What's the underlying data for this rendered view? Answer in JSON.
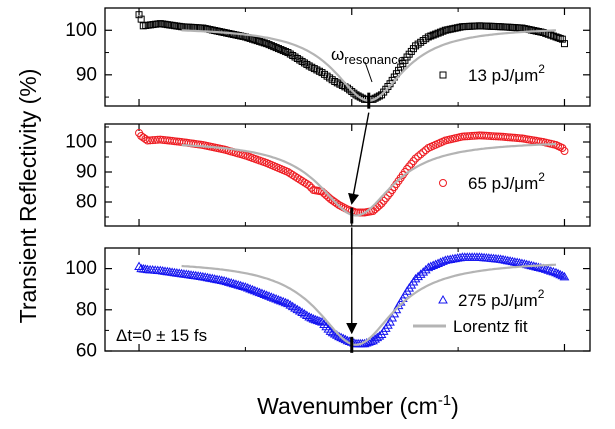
{
  "chart_data": {
    "type": "scatter",
    "xlabel": "Wavenumber (cm",
    "xlabel_sup": "-1",
    "xlabel_close": ")",
    "ylabel": "Transient Reflectivity (%)",
    "xlim": [
      7742,
      7856
    ],
    "x_ticks": [
      7750,
      7800,
      7850
    ],
    "fit_label": "Lorentz fit",
    "fit_color": "#b4b4b4",
    "resonance_label": "ω",
    "resonance_sub": "resonance",
    "delay_label": "Δt=0 ± 15 fs",
    "panels": [
      {
        "legend_value": "13 pJ/μm",
        "legend_sup": "2",
        "marker": "square",
        "color": "#000000",
        "ylim": [
          83,
          105
        ],
        "y_ticks": [
          90,
          100
        ],
        "resonance_x": 7804,
        "fit": {
          "base": 100.8,
          "amp": 16.6,
          "x0": 7804,
          "gamma": 20
        },
        "points": [
          [
            7750,
            103.5
          ],
          [
            7750.5,
            102.5
          ],
          [
            7751,
            101
          ],
          [
            7755,
            101.5
          ],
          [
            7760,
            100.8
          ],
          [
            7765,
            100.5
          ],
          [
            7770,
            99.5
          ],
          [
            7775,
            98.5
          ],
          [
            7780,
            97
          ],
          [
            7785,
            95
          ],
          [
            7790,
            92
          ],
          [
            7793,
            90.5
          ],
          [
            7796,
            88.5
          ],
          [
            7799,
            87
          ],
          [
            7801,
            85.5
          ],
          [
            7803,
            84.5
          ],
          [
            7805,
            84.5
          ],
          [
            7807,
            85.5
          ],
          [
            7809,
            88
          ],
          [
            7811,
            91
          ],
          [
            7813,
            94
          ],
          [
            7815,
            96.5
          ],
          [
            7818,
            98.5
          ],
          [
            7822,
            100
          ],
          [
            7826,
            100.8
          ],
          [
            7830,
            101
          ],
          [
            7835,
            100.8
          ],
          [
            7840,
            100.5
          ],
          [
            7845,
            99.5
          ],
          [
            7848,
            98.5
          ],
          [
            7849.5,
            98
          ],
          [
            7850,
            97
          ]
        ]
      },
      {
        "legend_value": "65 pJ/μm",
        "legend_sup": "2",
        "marker": "circle",
        "color": "#ee1d23",
        "ylim": [
          72,
          106
        ],
        "y_ticks": [
          80,
          90,
          100
        ],
        "resonance_x": 7800,
        "fit": {
          "base": 100.5,
          "amp": 25,
          "x0": 7801,
          "gamma": 21
        },
        "points": [
          [
            7750,
            103
          ],
          [
            7750.5,
            102
          ],
          [
            7752,
            100.5
          ],
          [
            7755,
            100.8
          ],
          [
            7760,
            100
          ],
          [
            7765,
            99
          ],
          [
            7770,
            97.5
          ],
          [
            7775,
            95.5
          ],
          [
            7780,
            93
          ],
          [
            7785,
            90
          ],
          [
            7790,
            85.5
          ],
          [
            7791,
            84
          ],
          [
            7793,
            83.5
          ],
          [
            7795,
            81
          ],
          [
            7797,
            79
          ],
          [
            7799,
            77.5
          ],
          [
            7801,
            76.5
          ],
          [
            7803,
            76.5
          ],
          [
            7805,
            77
          ],
          [
            7807,
            79.5
          ],
          [
            7809,
            83
          ],
          [
            7811,
            87
          ],
          [
            7813,
            91
          ],
          [
            7815,
            94.5
          ],
          [
            7818,
            98
          ],
          [
            7822,
            100.5
          ],
          [
            7826,
            101.8
          ],
          [
            7830,
            102.2
          ],
          [
            7835,
            101.8
          ],
          [
            7840,
            101.2
          ],
          [
            7845,
            100
          ],
          [
            7848,
            99
          ],
          [
            7849.5,
            98
          ],
          [
            7850,
            97
          ]
        ]
      },
      {
        "legend_value": "275 pJ/μm",
        "legend_sup": "2",
        "marker": "triangle",
        "color": "#1515f0",
        "ylim": [
          60,
          110
        ],
        "y_ticks": [
          60,
          80,
          100
        ],
        "resonance_x": 7800,
        "fit": {
          "base": 104,
          "amp": 41,
          "x0": 7801,
          "gamma": 22
        },
        "points": [
          [
            7750,
            101
          ],
          [
            7750.5,
            100
          ],
          [
            7752,
            99.5
          ],
          [
            7755,
            99
          ],
          [
            7760,
            97.5
          ],
          [
            7765,
            96
          ],
          [
            7770,
            94
          ],
          [
            7775,
            91
          ],
          [
            7780,
            87
          ],
          [
            7785,
            83
          ],
          [
            7790,
            76.5
          ],
          [
            7791,
            75.5
          ],
          [
            7793,
            74
          ],
          [
            7795,
            69.5
          ],
          [
            7797,
            67
          ],
          [
            7799,
            65
          ],
          [
            7801,
            63.5
          ],
          [
            7803,
            63.5
          ],
          [
            7805,
            65
          ],
          [
            7807,
            68
          ],
          [
            7809,
            74
          ],
          [
            7811,
            82
          ],
          [
            7813,
            89
          ],
          [
            7815,
            95
          ],
          [
            7818,
            100.5
          ],
          [
            7822,
            104
          ],
          [
            7826,
            105.5
          ],
          [
            7830,
            105.5
          ],
          [
            7835,
            104.5
          ],
          [
            7840,
            102.5
          ],
          [
            7845,
            100
          ],
          [
            7848,
            98
          ],
          [
            7850,
            96
          ]
        ]
      }
    ]
  }
}
